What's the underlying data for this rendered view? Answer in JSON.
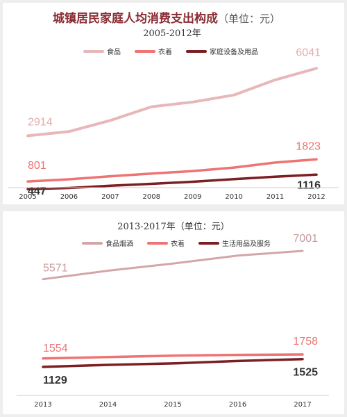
{
  "chart_data": [
    {
      "type": "line",
      "title": "城镇居民家庭人均消费支出构成",
      "title_unit": "（单位：元）",
      "subtitle": "2005-2012年",
      "x": [
        "2005",
        "2006",
        "2007",
        "2008",
        "2009",
        "2010",
        "2011",
        "2012"
      ],
      "ylim": [
        0,
        6500
      ],
      "legend_position": "top",
      "grid": false,
      "series": [
        {
          "name": "食品",
          "color": "#e8b7b9",
          "values": [
            2914,
            3111,
            3628,
            4259,
            4479,
            4805,
            5506,
            6041
          ]
        },
        {
          "name": "衣着",
          "color": "#ee7373",
          "values": [
            801,
            902,
            1042,
            1165,
            1284,
            1444,
            1675,
            1823
          ]
        },
        {
          "name": "家庭设备及用品",
          "color": "#7b1f22",
          "values": [
            447,
            499,
            601,
            691,
            787,
            908,
            1023,
            1116
          ]
        }
      ],
      "data_labels": [
        {
          "series": 0,
          "index": 0,
          "text": "2914"
        },
        {
          "series": 0,
          "index": 7,
          "text": "6041"
        },
        {
          "series": 1,
          "index": 0,
          "text": "801"
        },
        {
          "series": 1,
          "index": 7,
          "text": "1823"
        },
        {
          "series": 2,
          "index": 0,
          "text": "447"
        },
        {
          "series": 2,
          "index": 7,
          "text": "1116"
        }
      ]
    },
    {
      "type": "line",
      "title": "2013-2017年（单位：元）",
      "x": [
        "2013",
        "2014",
        "2015",
        "2016",
        "2017"
      ],
      "ylim": [
        0,
        7600
      ],
      "legend_position": "top",
      "grid": false,
      "series": [
        {
          "name": "食品烟酒",
          "color": "#d4a5a8",
          "values": [
            5571,
            6000,
            6360,
            6762,
            7001
          ]
        },
        {
          "name": "衣着",
          "color": "#ee7373",
          "values": [
            1554,
            1627,
            1701,
            1739,
            1758
          ]
        },
        {
          "name": "生活用品及服务",
          "color": "#7b1f22",
          "values": [
            1129,
            1233,
            1306,
            1427,
            1525
          ]
        }
      ],
      "data_labels": [
        {
          "series": 0,
          "index": 0,
          "text": "5571"
        },
        {
          "series": 0,
          "index": 4,
          "text": "7001"
        },
        {
          "series": 1,
          "index": 0,
          "text": "1554"
        },
        {
          "series": 1,
          "index": 4,
          "text": "1758"
        },
        {
          "series": 2,
          "index": 0,
          "text": "1129"
        },
        {
          "series": 2,
          "index": 4,
          "text": "1525"
        }
      ]
    }
  ]
}
